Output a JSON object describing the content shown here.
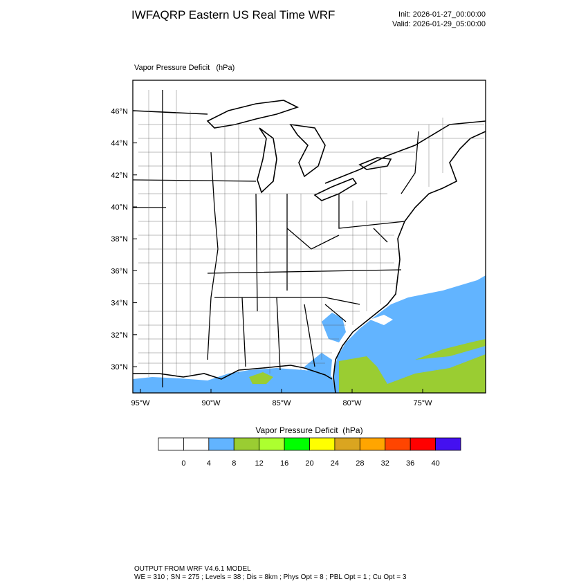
{
  "header": {
    "title": "IWFAQRP Eastern US Real Time WRF",
    "init": "Init: 2026-01-27_00:00:00",
    "valid": "Valid: 2026-01-29_05:00:00"
  },
  "map": {
    "field_label": "Vapor Pressure Deficit   (hPa)",
    "lat_ticks": [
      {
        "value": 46,
        "label": "46°N"
      },
      {
        "value": 44,
        "label": "44°N"
      },
      {
        "value": 42,
        "label": "42°N"
      },
      {
        "value": 40,
        "label": "40°N"
      },
      {
        "value": 38,
        "label": "38°N"
      },
      {
        "value": 36,
        "label": "36°N"
      },
      {
        "value": 34,
        "label": "34°N"
      },
      {
        "value": 32,
        "label": "32°N"
      },
      {
        "value": 30,
        "label": "30°N"
      }
    ],
    "lon_ticks": [
      {
        "value": -95,
        "label": "95°W"
      },
      {
        "value": -90,
        "label": "90°W"
      },
      {
        "value": -85,
        "label": "85°W"
      },
      {
        "value": -80,
        "label": "80°W"
      },
      {
        "value": -75,
        "label": "75°W"
      }
    ]
  },
  "colorbar": {
    "title": "Vapor Pressure Deficit  (hPa)",
    "levels": [
      0,
      4,
      8,
      12,
      16,
      20,
      24,
      28,
      32,
      36,
      40
    ],
    "colors": [
      "#ffffff",
      "#ffffff",
      "#62b4ff",
      "#9acd32",
      "#adff2f",
      "#00ff00",
      "#ffff00",
      "#daa520",
      "#ffa500",
      "#ff4500",
      "#ff0000",
      "#4410f0"
    ]
  },
  "footer": {
    "line1": "OUTPUT FROM WRF V4.6.1 MODEL",
    "line2": "WE = 310 ; SN = 275 ; Levels = 38 ; Dis = 8km ; Phys Opt = 8 ; PBL Opt = 1 ; Cu Opt = 3"
  }
}
